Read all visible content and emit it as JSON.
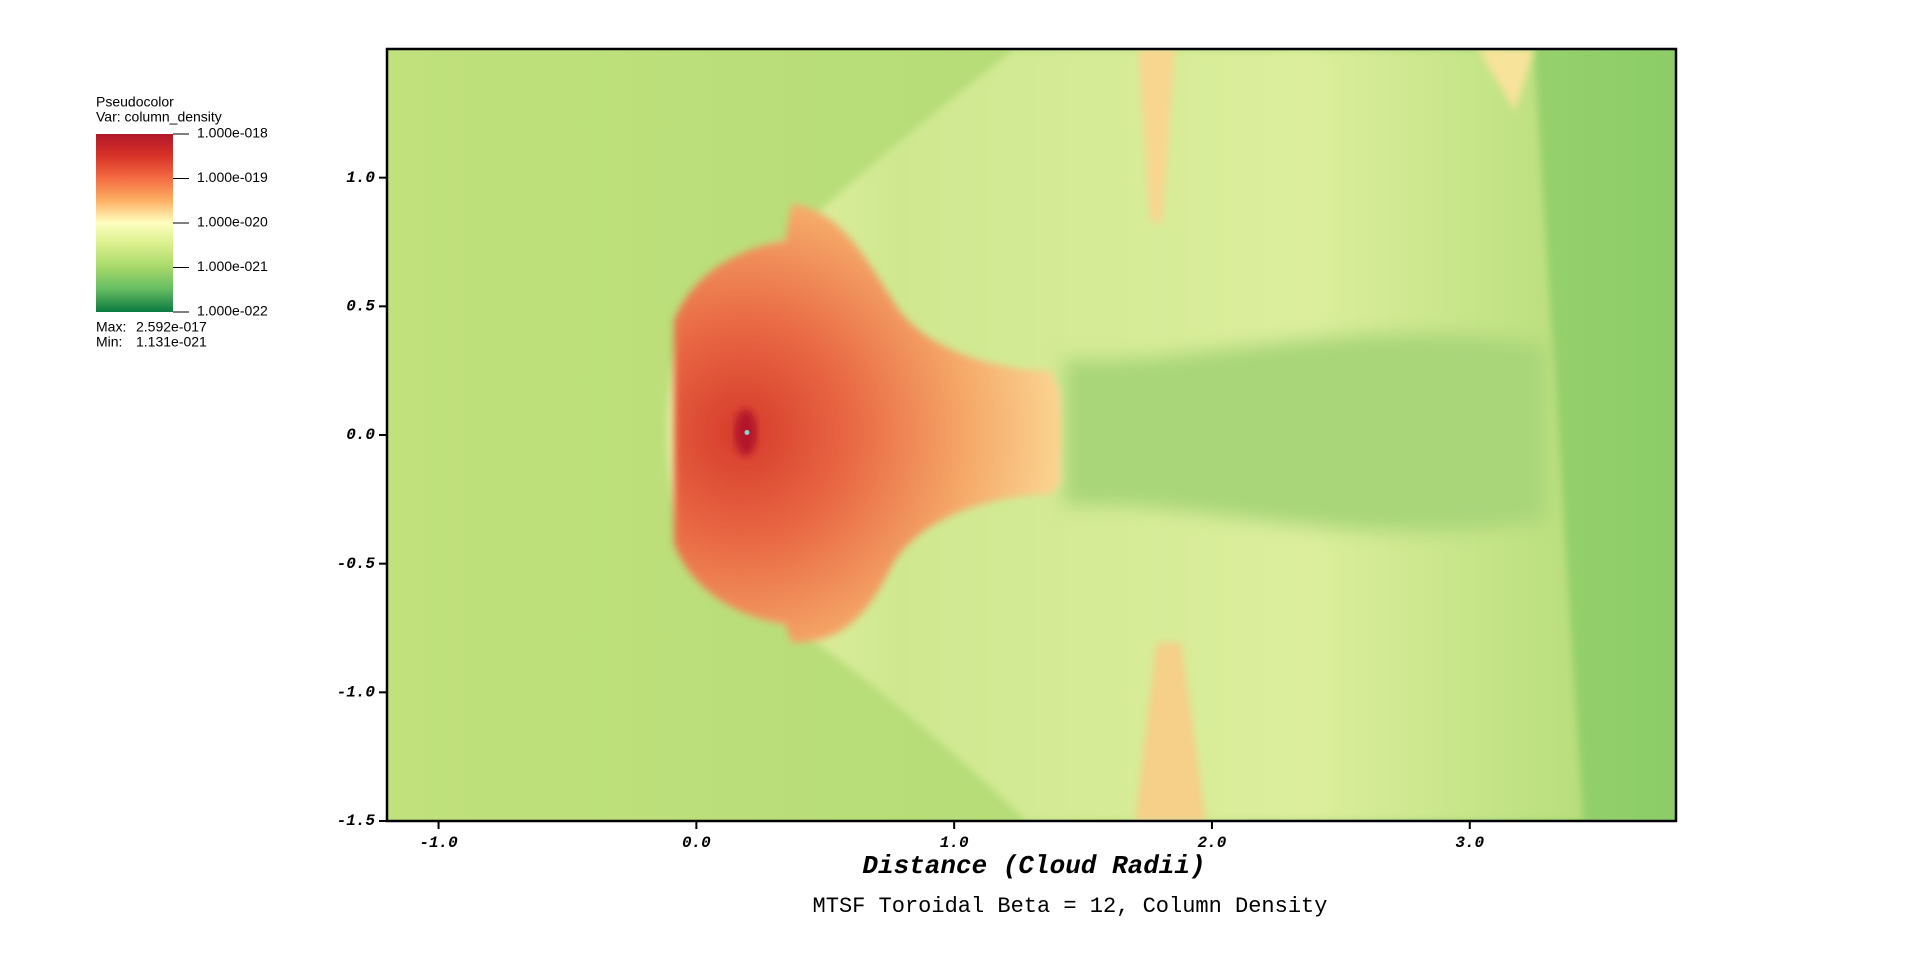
{
  "chart_data": {
    "type": "pseudocolor",
    "title": "MTSF Toroidal Beta = 12, Column Density",
    "xlabel": "Distance (Cloud Radii)",
    "xlim": [
      -1.2,
      3.8
    ],
    "xticks": [
      {
        "value": -1,
        "label": "-1.0"
      },
      {
        "value": 0,
        "label": "0.0"
      },
      {
        "value": 1,
        "label": "1.0"
      },
      {
        "value": 2,
        "label": "2.0"
      },
      {
        "value": 3,
        "label": "3.0"
      }
    ],
    "ylim": [
      -1.5,
      1.5
    ],
    "yticks": [
      {
        "value": -1.5,
        "label": "-1.5"
      },
      {
        "value": -1,
        "label": "-1.0"
      },
      {
        "value": -0.5,
        "label": "-0.5"
      },
      {
        "value": 0,
        "label": "0.0"
      },
      {
        "value": 0.5,
        "label": "0.5"
      },
      {
        "value": 1,
        "label": "1.0"
      }
    ],
    "legend": {
      "title": "Pseudocolor",
      "variable": "Var: column_density",
      "log_scale": true,
      "lim": [
        1e-22,
        1e-18
      ],
      "ticks": [
        {
          "value": 1e-18,
          "label": "1.000e-018"
        },
        {
          "value": 1e-19,
          "label": "1.000e-019"
        },
        {
          "value": 1e-20,
          "label": "1.000e-020"
        },
        {
          "value": 1e-21,
          "label": "1.000e-021"
        },
        {
          "value": 1e-22,
          "label": "1.000e-022"
        }
      ],
      "max_label": "Max:",
      "max": {
        "value": 2.592e-17,
        "label": "2.592e-017"
      },
      "min_label": "Min:",
      "min": {
        "value": 1.131e-21,
        "label": "1.131e-021"
      }
    }
  }
}
